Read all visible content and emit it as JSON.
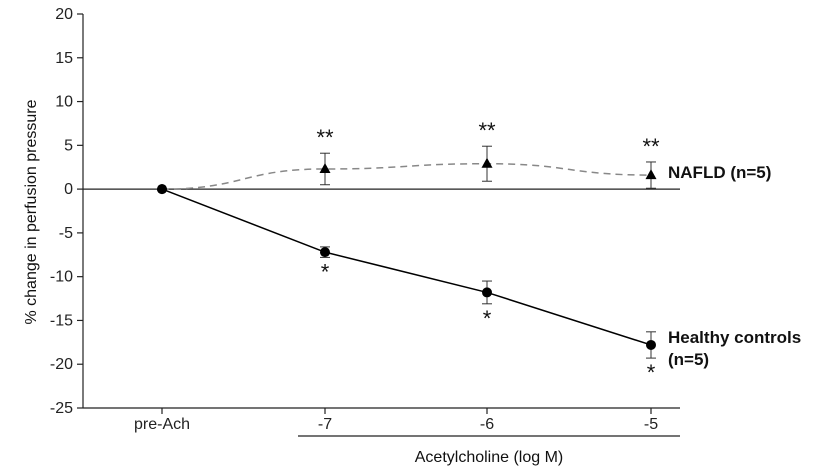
{
  "chart_data": {
    "type": "line",
    "categories": [
      "pre-Ach",
      "-7",
      "-6",
      "-5"
    ],
    "xlabel": "Acetylcholine (log M)",
    "ylabel": "% change in perfusion pressure",
    "ylim": [
      -25,
      20
    ],
    "yticks": [
      "20",
      "15",
      "10",
      "5",
      "0",
      "-5",
      "-10",
      "-15",
      "-20",
      "-25"
    ],
    "grid": false,
    "zero_line": true,
    "series": [
      {
        "name": "NAFLD (n=5)",
        "name_lines": [
          "NAFLD (n=5)"
        ],
        "values": [
          0,
          2.3,
          2.9,
          1.6
        ],
        "error": [
          0,
          1.8,
          2.0,
          1.5
        ],
        "marker": "triangle",
        "line_style": "dashed",
        "line_color": "#888888",
        "significance": [
          "",
          "**",
          "**",
          "**"
        ]
      },
      {
        "name": "Healthy controls (n=5)",
        "name_lines": [
          "Healthy controls",
          "(n=5)"
        ],
        "values": [
          0,
          -7.2,
          -11.8,
          -17.8
        ],
        "error": [
          0,
          0.6,
          1.3,
          1.5
        ],
        "marker": "circle",
        "line_style": "solid",
        "line_color": "#000000",
        "significance": [
          "",
          "*",
          "*",
          "*"
        ]
      }
    ]
  }
}
